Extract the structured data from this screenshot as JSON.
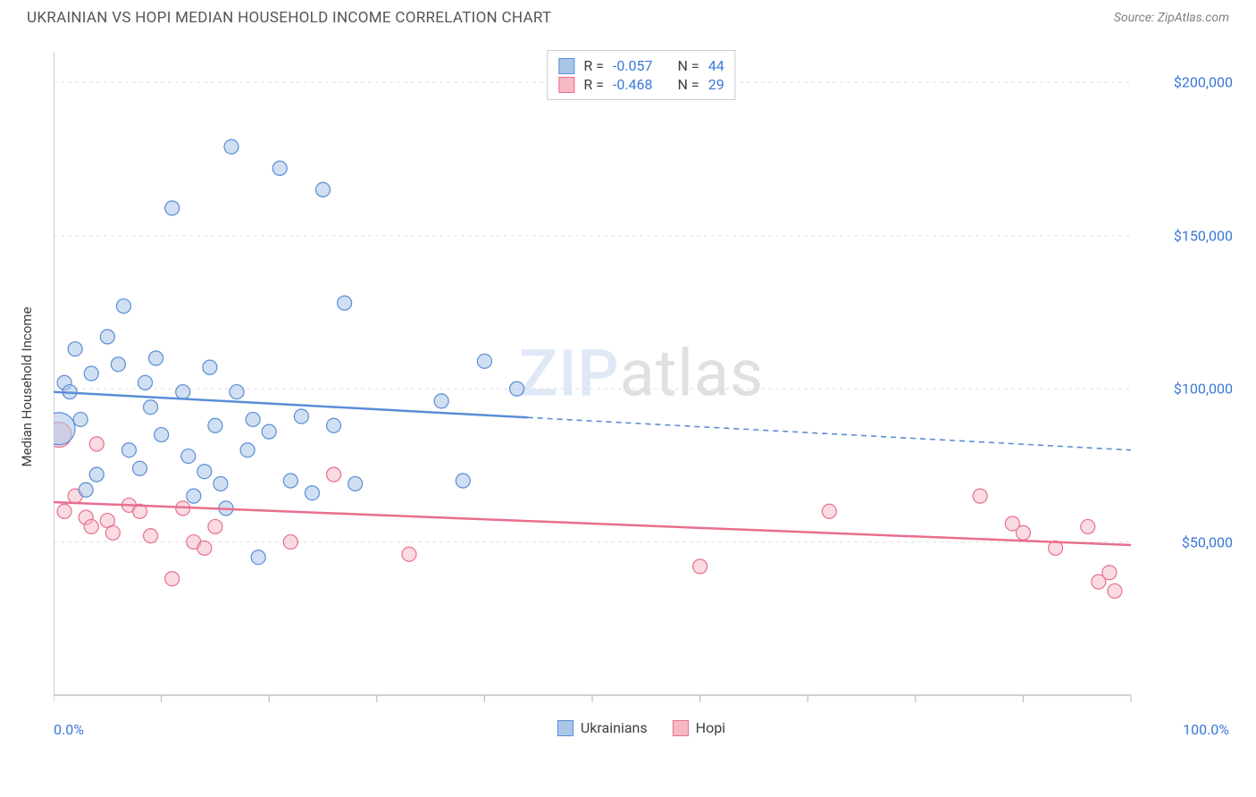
{
  "title": "UKRAINIAN VS HOPI MEDIAN HOUSEHOLD INCOME CORRELATION CHART",
  "source": "Source: ZipAtlas.com",
  "watermark_zip": "ZIP",
  "watermark_atlas": "atlas",
  "y_axis_label": "Median Household Income",
  "chart": {
    "type": "scatter",
    "background_color": "#ffffff",
    "grid_color": "#dddddd",
    "grid_dash": "4 4",
    "border_color": "#c0c0c0",
    "xlim": [
      0,
      100
    ],
    "ylim": [
      0,
      210000
    ],
    "x_ticks": [
      0,
      10,
      20,
      30,
      40,
      50,
      60,
      70,
      80,
      90,
      100
    ],
    "y_ticks": [
      50000,
      100000,
      150000,
      200000
    ],
    "y_tick_labels": [
      "$50,000",
      "$100,000",
      "$150,000",
      "$200,000"
    ],
    "x_min_label": "0.0%",
    "x_max_label": "100.0%",
    "y_tick_color": "#3b78d8",
    "x_label_color": "#3b78d8",
    "marker_radius": 8,
    "marker_stroke_width": 1.2,
    "trend_line_width": 2.5,
    "trend_dash": "6 5",
    "series": {
      "ukrainians": {
        "label": "Ukrainians",
        "fill": "#a9c5e8",
        "stroke": "#5b8dd6",
        "fill_opacity": 0.55,
        "trend_solid_end_x": 44,
        "trend_start_y": 99000,
        "trend_end_y": 80000,
        "points": [
          {
            "x": 0.5,
            "y": 87000,
            "r": 18
          },
          {
            "x": 1,
            "y": 102000
          },
          {
            "x": 1.5,
            "y": 99000
          },
          {
            "x": 2,
            "y": 113000
          },
          {
            "x": 2.5,
            "y": 90000
          },
          {
            "x": 3,
            "y": 67000
          },
          {
            "x": 3.5,
            "y": 105000
          },
          {
            "x": 4,
            "y": 72000
          },
          {
            "x": 5,
            "y": 117000
          },
          {
            "x": 6,
            "y": 108000
          },
          {
            "x": 6.5,
            "y": 127000
          },
          {
            "x": 7,
            "y": 80000
          },
          {
            "x": 8,
            "y": 74000
          },
          {
            "x": 8.5,
            "y": 102000
          },
          {
            "x": 9,
            "y": 94000
          },
          {
            "x": 9.5,
            "y": 110000
          },
          {
            "x": 10,
            "y": 85000
          },
          {
            "x": 11,
            "y": 159000
          },
          {
            "x": 12,
            "y": 99000
          },
          {
            "x": 12.5,
            "y": 78000
          },
          {
            "x": 13,
            "y": 65000
          },
          {
            "x": 14,
            "y": 73000
          },
          {
            "x": 14.5,
            "y": 107000
          },
          {
            "x": 15,
            "y": 88000
          },
          {
            "x": 15.5,
            "y": 69000
          },
          {
            "x": 16,
            "y": 61000
          },
          {
            "x": 16.5,
            "y": 179000
          },
          {
            "x": 17,
            "y": 99000
          },
          {
            "x": 18,
            "y": 80000
          },
          {
            "x": 18.5,
            "y": 90000
          },
          {
            "x": 19,
            "y": 45000
          },
          {
            "x": 20,
            "y": 86000
          },
          {
            "x": 21,
            "y": 172000
          },
          {
            "x": 22,
            "y": 70000
          },
          {
            "x": 23,
            "y": 91000
          },
          {
            "x": 24,
            "y": 66000
          },
          {
            "x": 25,
            "y": 165000
          },
          {
            "x": 26,
            "y": 88000
          },
          {
            "x": 27,
            "y": 128000
          },
          {
            "x": 28,
            "y": 69000
          },
          {
            "x": 36,
            "y": 96000
          },
          {
            "x": 38,
            "y": 70000
          },
          {
            "x": 40,
            "y": 109000
          },
          {
            "x": 43,
            "y": 100000
          }
        ]
      },
      "hopi": {
        "label": "Hopi",
        "fill": "#f6b8c5",
        "stroke": "#e86f8d",
        "fill_opacity": 0.5,
        "trend_solid_end_x": 100,
        "trend_start_y": 63000,
        "trend_end_y": 49000,
        "points": [
          {
            "x": 0.5,
            "y": 85000,
            "r": 14
          },
          {
            "x": 1,
            "y": 60000
          },
          {
            "x": 2,
            "y": 65000
          },
          {
            "x": 3,
            "y": 58000
          },
          {
            "x": 3.5,
            "y": 55000
          },
          {
            "x": 4,
            "y": 82000
          },
          {
            "x": 5,
            "y": 57000
          },
          {
            "x": 5.5,
            "y": 53000
          },
          {
            "x": 7,
            "y": 62000
          },
          {
            "x": 8,
            "y": 60000
          },
          {
            "x": 9,
            "y": 52000
          },
          {
            "x": 11,
            "y": 38000
          },
          {
            "x": 12,
            "y": 61000
          },
          {
            "x": 13,
            "y": 50000
          },
          {
            "x": 14,
            "y": 48000
          },
          {
            "x": 15,
            "y": 55000
          },
          {
            "x": 22,
            "y": 50000
          },
          {
            "x": 26,
            "y": 72000
          },
          {
            "x": 33,
            "y": 46000
          },
          {
            "x": 60,
            "y": 42000
          },
          {
            "x": 72,
            "y": 60000
          },
          {
            "x": 86,
            "y": 65000
          },
          {
            "x": 89,
            "y": 56000
          },
          {
            "x": 90,
            "y": 53000
          },
          {
            "x": 93,
            "y": 48000
          },
          {
            "x": 96,
            "y": 55000
          },
          {
            "x": 97,
            "y": 37000
          },
          {
            "x": 98,
            "y": 40000
          },
          {
            "x": 98.5,
            "y": 34000
          }
        ]
      }
    }
  },
  "stats_legend": {
    "rows": [
      {
        "swatch_fill": "#a9c5e8",
        "swatch_stroke": "#5b8dd6",
        "r_label": "R =",
        "r_value": "-0.057",
        "n_label": "N =",
        "n_value": "44",
        "value_color": "#3b78d8"
      },
      {
        "swatch_fill": "#f6b8c5",
        "swatch_stroke": "#e86f8d",
        "r_label": "R =",
        "r_value": "-0.468",
        "n_label": "N =",
        "n_value": "29",
        "value_color": "#3b78d8"
      }
    ]
  },
  "bottom_legend": [
    {
      "swatch_fill": "#a9c5e8",
      "swatch_stroke": "#5b8dd6",
      "label": "Ukrainians"
    },
    {
      "swatch_fill": "#f6b8c5",
      "swatch_stroke": "#e86f8d",
      "label": "Hopi"
    }
  ]
}
